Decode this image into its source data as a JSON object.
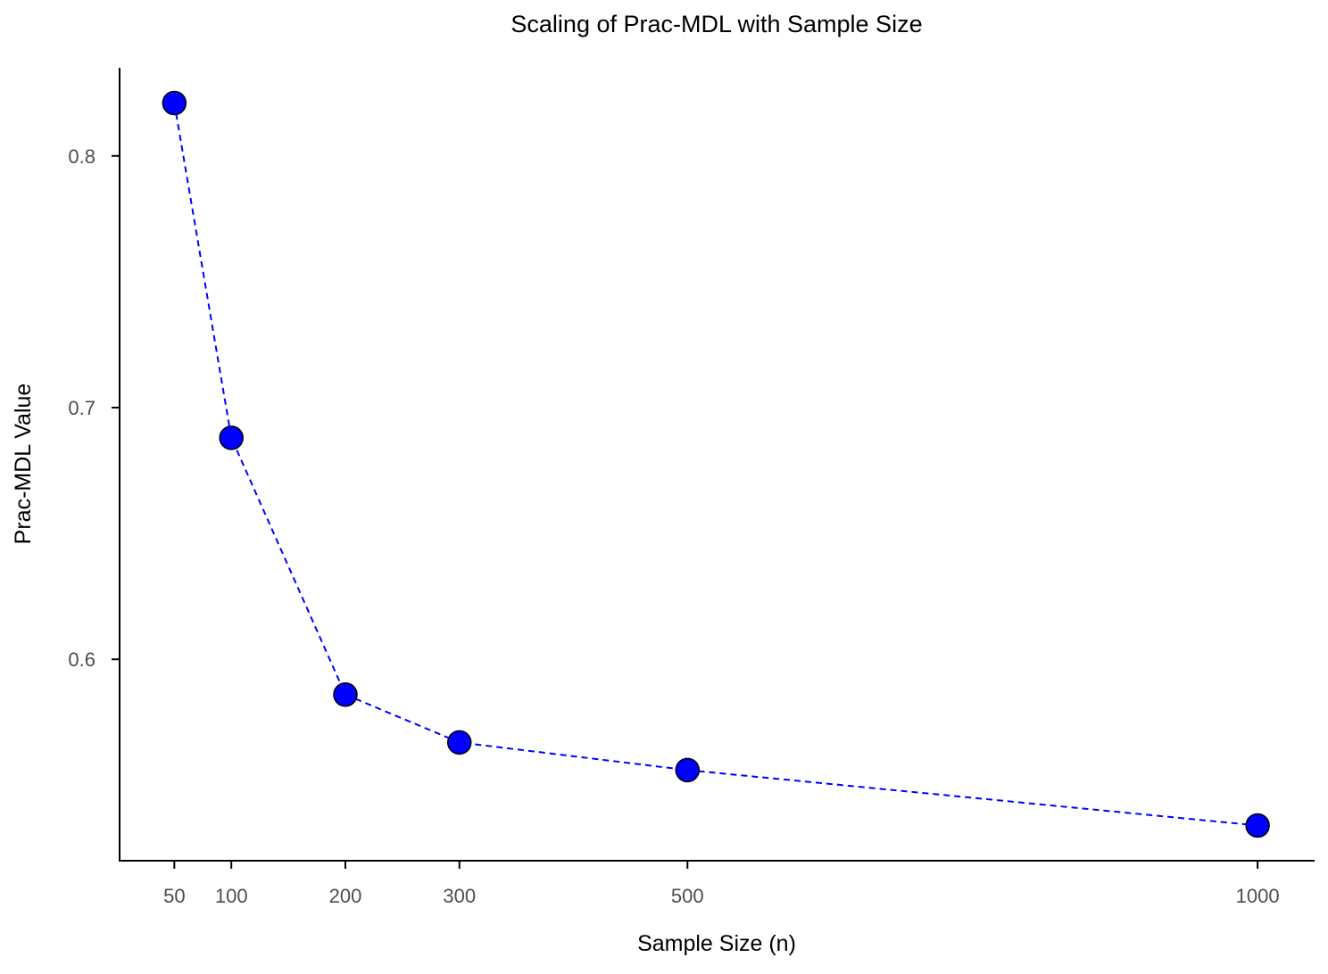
{
  "chart_data": {
    "type": "line",
    "title": "Scaling of Prac-MDL with Sample Size",
    "xlabel": "Sample Size (n)",
    "ylabel": "Prac-MDL Value",
    "x_ticks": [
      50,
      100,
      200,
      300,
      500,
      1000
    ],
    "y_ticks": [
      0.6,
      0.7,
      0.8
    ],
    "y_tick_labels": [
      "0.6",
      "0.7",
      "0.8"
    ],
    "xlim": [
      2,
      1050
    ],
    "ylim": [
      0.52,
      0.835
    ],
    "grid": false,
    "legend": "none",
    "series": [
      {
        "line_style": "dashed",
        "marker": "circle",
        "line_color": "#0000ff",
        "marker_fill": "#0000ff",
        "marker_edge": "#000000",
        "points": [
          {
            "x": 50,
            "y": 0.821
          },
          {
            "x": 100,
            "y": 0.688
          },
          {
            "x": 200,
            "y": 0.586
          },
          {
            "x": 300,
            "y": 0.567
          },
          {
            "x": 500,
            "y": 0.556
          },
          {
            "x": 1000,
            "y": 0.534
          }
        ]
      }
    ]
  }
}
